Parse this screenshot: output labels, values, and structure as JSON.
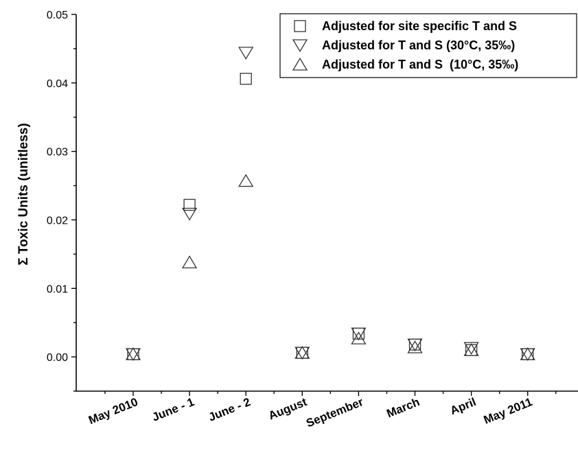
{
  "chart_data": {
    "type": "scatter",
    "title": "",
    "xlabel": "",
    "ylabel": "Σ Toxic Units (unitless)",
    "categories": [
      "May 2010",
      "June - 1",
      "June - 2",
      "August",
      "September",
      "March",
      "April",
      "May 2011"
    ],
    "ylim": [
      -0.005,
      0.05
    ],
    "yticks": [
      "0.00",
      "0.01",
      "0.02",
      "0.03",
      "0.04",
      "0.05"
    ],
    "ytick_values": [
      0,
      0.01,
      0.02,
      0.03,
      0.04,
      0.05
    ],
    "grid": false,
    "legend_position": "top-right",
    "series": [
      {
        "name": "Adjusted for site specific T and S",
        "marker": "square",
        "values": [
          0.0004,
          0.0222,
          0.0406,
          0.0006,
          0.0034,
          0.0018,
          0.001,
          0.0004
        ]
      },
      {
        "name": "Adjusted for T and S (30°C, 35‰)",
        "marker": "triangle-down",
        "values": [
          0.0004,
          0.0209,
          0.0444,
          0.0006,
          0.0034,
          0.0018,
          0.0013,
          0.0004
        ]
      },
      {
        "name": "Adjusted for T and S  (10°C, 35‰)",
        "marker": "triangle-up",
        "values": [
          0.0004,
          0.0138,
          0.0257,
          0.0006,
          0.0027,
          0.0014,
          0.001,
          0.0004
        ]
      }
    ]
  }
}
